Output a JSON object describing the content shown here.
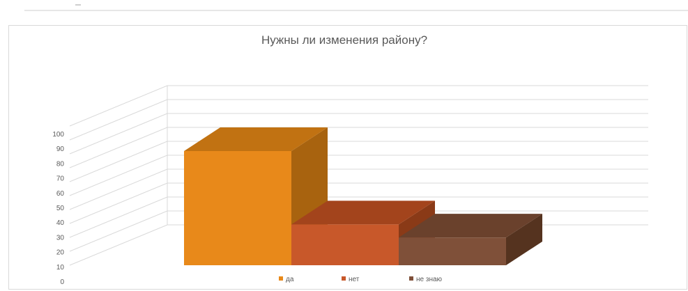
{
  "chart_data": {
    "type": "bar",
    "title": "Нужны ли изменения району?",
    "categories": [
      "да",
      "нет",
      "не знаю"
    ],
    "values": [
      70,
      25,
      17
    ],
    "ylim": [
      0,
      100
    ],
    "yticks": [
      0,
      10,
      20,
      30,
      40,
      50,
      60,
      70,
      80,
      90,
      100
    ],
    "grid": true,
    "three_d": true,
    "legend_position": "bottom",
    "colors": [
      {
        "front": "#e8891a",
        "side": "#a8630f",
        "top": "#c17212"
      },
      {
        "front": "#c8582a",
        "side": "#8a3a17",
        "top": "#a3441c"
      },
      {
        "front": "#7f5039",
        "side": "#55331f",
        "top": "#6a412c"
      }
    ],
    "gridline_color": "#d9d9d9"
  }
}
